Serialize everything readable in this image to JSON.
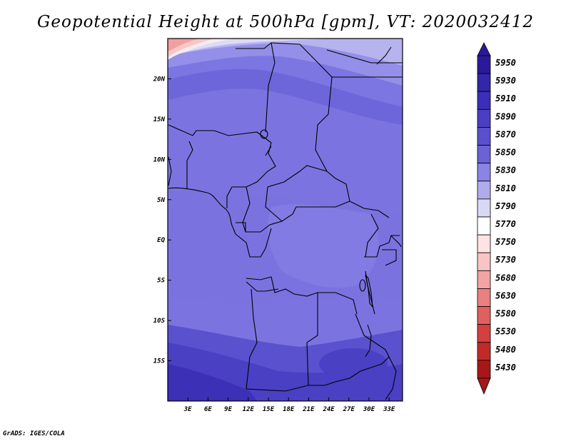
{
  "title": "Geopotential Height at 500hPa [gpm], VT: 2020032412",
  "credit": "GrADS: IGES/COLA",
  "chart_data": {
    "type": "heatmap",
    "title": "Geopotential Height at 500hPa [gpm], VT: 2020032412",
    "variable": "Geopotential Height at 500hPa",
    "units": "gpm",
    "valid_time": "2020032412",
    "x_axis": {
      "range": [
        0,
        35
      ],
      "ticks": [
        3,
        6,
        9,
        12,
        15,
        18,
        21,
        24,
        27,
        30,
        33
      ],
      "tick_labels": [
        "3E",
        "6E",
        "9E",
        "12E",
        "15E",
        "18E",
        "21E",
        "24E",
        "27E",
        "30E",
        "33E"
      ]
    },
    "y_axis": {
      "range": [
        -20,
        25
      ],
      "ticks": [
        20,
        15,
        10,
        5,
        0,
        -5,
        -10,
        -15
      ],
      "tick_labels": [
        "20N",
        "15N",
        "10N",
        "5N",
        "EQ",
        "5S",
        "10S",
        "15S"
      ]
    },
    "colorbar": {
      "levels": [
        5950,
        5930,
        5910,
        5890,
        5870,
        5850,
        5830,
        5810,
        5790,
        5770,
        5750,
        5730,
        5680,
        5630,
        5580,
        5530,
        5480,
        5430
      ],
      "colors": [
        "#2a1a9a",
        "#3326a8",
        "#3b2eb8",
        "#4a3fc2",
        "#5a50cc",
        "#6b62d6",
        "#8a84e2",
        "#b0aceb",
        "#d9d8f5",
        "#ffffff",
        "#fde3e3",
        "#f9c4c4",
        "#f2a3a3",
        "#ea8080",
        "#e06060",
        "#d44040",
        "#c22a2a",
        "#a61818"
      ],
      "placement": "right"
    },
    "grid": false
  }
}
